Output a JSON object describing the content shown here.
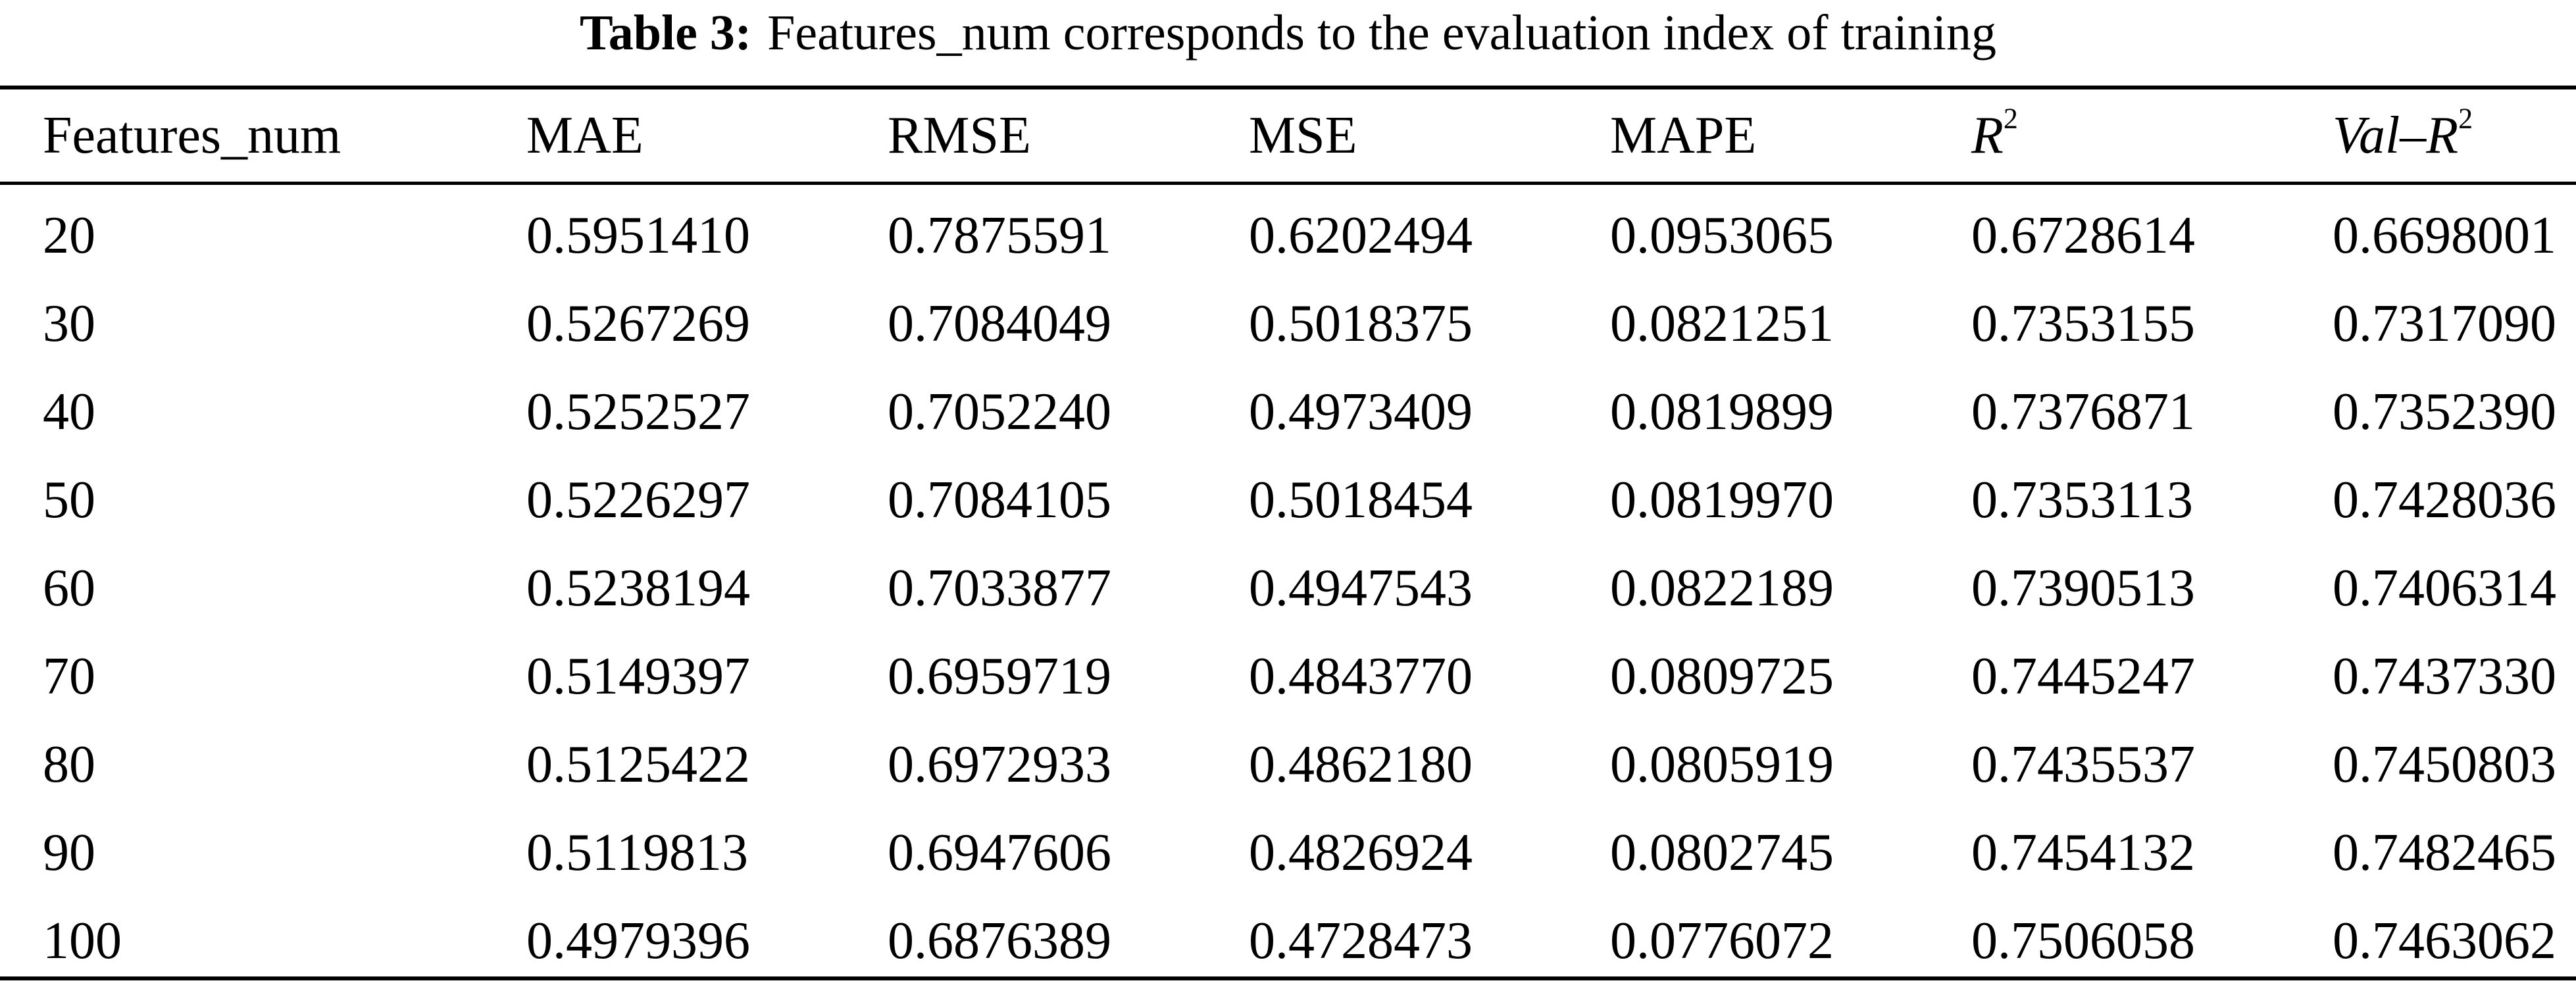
{
  "caption": {
    "label": "Table 3:",
    "text": "Features_num corresponds to the evaluation index of training"
  },
  "table": {
    "headers": {
      "features_num": "Features_num",
      "mae": "MAE",
      "rmse": "RMSE",
      "mse": "MSE",
      "mape": "MAPE",
      "r2_base": "R",
      "r2_sup": "2",
      "val_r2_base": "Val–R",
      "val_r2_sup": "2"
    },
    "rows": [
      [
        "20",
        "0.5951410",
        "0.7875591",
        "0.6202494",
        "0.0953065",
        "0.6728614",
        "0.6698001"
      ],
      [
        "30",
        "0.5267269",
        "0.7084049",
        "0.5018375",
        "0.0821251",
        "0.7353155",
        "0.7317090"
      ],
      [
        "40",
        "0.5252527",
        "0.7052240",
        "0.4973409",
        "0.0819899",
        "0.7376871",
        "0.7352390"
      ],
      [
        "50",
        "0.5226297",
        "0.7084105",
        "0.5018454",
        "0.0819970",
        "0.7353113",
        "0.7428036"
      ],
      [
        "60",
        "0.5238194",
        "0.7033877",
        "0.4947543",
        "0.0822189",
        "0.7390513",
        "0.7406314"
      ],
      [
        "70",
        "0.5149397",
        "0.6959719",
        "0.4843770",
        "0.0809725",
        "0.7445247",
        "0.7437330"
      ],
      [
        "80",
        "0.5125422",
        "0.6972933",
        "0.4862180",
        "0.0805919",
        "0.7435537",
        "0.7450803"
      ],
      [
        "90",
        "0.5119813",
        "0.6947606",
        "0.4826924",
        "0.0802745",
        "0.7454132",
        "0.7482465"
      ],
      [
        "100",
        "0.4979396",
        "0.6876389",
        "0.4728473",
        "0.0776072",
        "0.7506058",
        "0.7463062"
      ]
    ]
  }
}
